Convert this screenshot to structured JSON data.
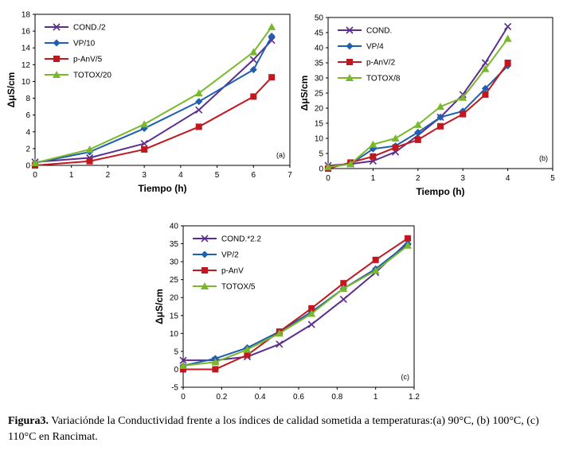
{
  "chart_data": [
    {
      "type": "line",
      "panel_label": "(a)",
      "xlabel": "Tiempo (h)",
      "ylabel": "ΔμS/cm",
      "xlim": [
        0,
        7
      ],
      "ylim": [
        0,
        18
      ],
      "xticks": [
        0,
        1,
        2,
        3,
        4,
        5,
        6,
        7
      ],
      "yticks": [
        0,
        2,
        4,
        6,
        8,
        10,
        12,
        14,
        16,
        18
      ],
      "grid": false,
      "legend": "top-left",
      "series": [
        {
          "name": "COND./2",
          "color": "#5b2d8e",
          "marker": "x",
          "x": [
            0,
            1.5,
            3,
            4.5,
            6,
            6.5
          ],
          "y": [
            0.4,
            0.9,
            2.6,
            6.6,
            12.6,
            14.9
          ]
        },
        {
          "name": "VP/10",
          "color": "#1f5fb0",
          "marker": "diamond",
          "x": [
            0,
            1.5,
            3,
            4.5,
            6,
            6.5
          ],
          "y": [
            0.3,
            1.6,
            4.4,
            7.6,
            11.4,
            15.4
          ]
        },
        {
          "name": "p-AnV/5",
          "color": "#c0181e",
          "marker": "square",
          "x": [
            0,
            1.5,
            3,
            4.5,
            6,
            6.5
          ],
          "y": [
            0,
            0.5,
            1.9,
            4.6,
            8.2,
            10.5
          ]
        },
        {
          "name": "TOTOX/20",
          "color": "#7ab82b",
          "marker": "triangle",
          "x": [
            0,
            1.5,
            3,
            4.5,
            6,
            6.5
          ],
          "y": [
            0.3,
            1.9,
            4.9,
            8.6,
            13.5,
            16.5
          ]
        }
      ]
    },
    {
      "type": "line",
      "panel_label": "(b)",
      "xlabel": "Tiempo (h)",
      "ylabel": "ΔμS/cm",
      "xlim": [
        0,
        5
      ],
      "ylim": [
        0,
        50
      ],
      "xticks": [
        0,
        1,
        2,
        3,
        4,
        5
      ],
      "yticks": [
        0,
        5,
        10,
        15,
        20,
        25,
        30,
        35,
        40,
        45,
        50
      ],
      "grid": false,
      "legend": "top-left",
      "series": [
        {
          "name": "COND.",
          "color": "#5b2d8e",
          "marker": "x",
          "x": [
            0,
            0.5,
            1,
            1.5,
            2,
            2.5,
            3,
            3.5,
            4
          ],
          "y": [
            1,
            1.5,
            2.5,
            5.5,
            11,
            17,
            24.5,
            35,
            47
          ]
        },
        {
          "name": "VP/4",
          "color": "#1f5fb0",
          "marker": "diamond",
          "x": [
            0,
            0.5,
            1,
            1.5,
            2,
            2.5,
            3,
            3.5,
            4
          ],
          "y": [
            0.5,
            1.5,
            6.5,
            7.5,
            12,
            17,
            19,
            26.5,
            34
          ]
        },
        {
          "name": "p-AnV/2",
          "color": "#c0181e",
          "marker": "square",
          "x": [
            0,
            0.5,
            1,
            1.5,
            2,
            2.5,
            3,
            3.5,
            4
          ],
          "y": [
            0,
            2,
            4,
            7,
            9.5,
            14,
            18,
            24.5,
            35
          ]
        },
        {
          "name": "TOTOX/8",
          "color": "#7ab82b",
          "marker": "triangle",
          "x": [
            0,
            0.5,
            1,
            1.5,
            2,
            2.5,
            3,
            3.5,
            4
          ],
          "y": [
            0.5,
            1.5,
            8,
            10,
            14.5,
            20.5,
            23.5,
            33,
            43
          ]
        }
      ]
    },
    {
      "type": "line",
      "panel_label": "(c)",
      "xlabel": "Tiempo (h)",
      "ylabel": "ΔμS/cm",
      "xlim": [
        0,
        1.2
      ],
      "ylim": [
        -5,
        40
      ],
      "xticks": [
        0,
        0.2,
        0.4,
        0.6,
        0.8,
        1,
        1.2
      ],
      "yticks": [
        -5,
        0,
        5,
        10,
        15,
        20,
        25,
        30,
        35,
        40
      ],
      "grid": false,
      "legend": "top-left",
      "series": [
        {
          "name": "COND.*2.2",
          "color": "#5b2d8e",
          "marker": "x",
          "x": [
            0,
            0.167,
            0.333,
            0.5,
            0.667,
            0.833,
            1,
            1.167
          ],
          "y": [
            2.5,
            2.5,
            3.5,
            7,
            12.5,
            19.5,
            27,
            35.5
          ]
        },
        {
          "name": "VP/2",
          "color": "#1f5fb0",
          "marker": "diamond",
          "x": [
            0,
            0.167,
            0.333,
            0.5,
            0.667,
            0.833,
            1,
            1.167
          ],
          "y": [
            1,
            3,
            6,
            10.5,
            16,
            22.5,
            28,
            35
          ]
        },
        {
          "name": "p-AnV",
          "color": "#c0181e",
          "marker": "square",
          "x": [
            0,
            0.167,
            0.333,
            0.5,
            0.667,
            0.833,
            1,
            1.167
          ],
          "y": [
            0,
            0,
            4,
            10.5,
            17,
            24,
            30.5,
            36.5
          ]
        },
        {
          "name": "TOTOX/5",
          "color": "#7ab82b",
          "marker": "triangle",
          "x": [
            0,
            0.167,
            0.333,
            0.5,
            0.667,
            0.833,
            1,
            1.167
          ],
          "y": [
            1,
            2,
            5.5,
            10,
            15.5,
            22.5,
            27.5,
            34.5
          ]
        }
      ]
    }
  ],
  "caption": {
    "label": "Figura3.",
    "text": " Variacióndе la Conductividad frente a los índices de calidad sometida a temperaturas:(a) 90°C, (b) 100°C, (c) 110°C en Rancimat."
  }
}
